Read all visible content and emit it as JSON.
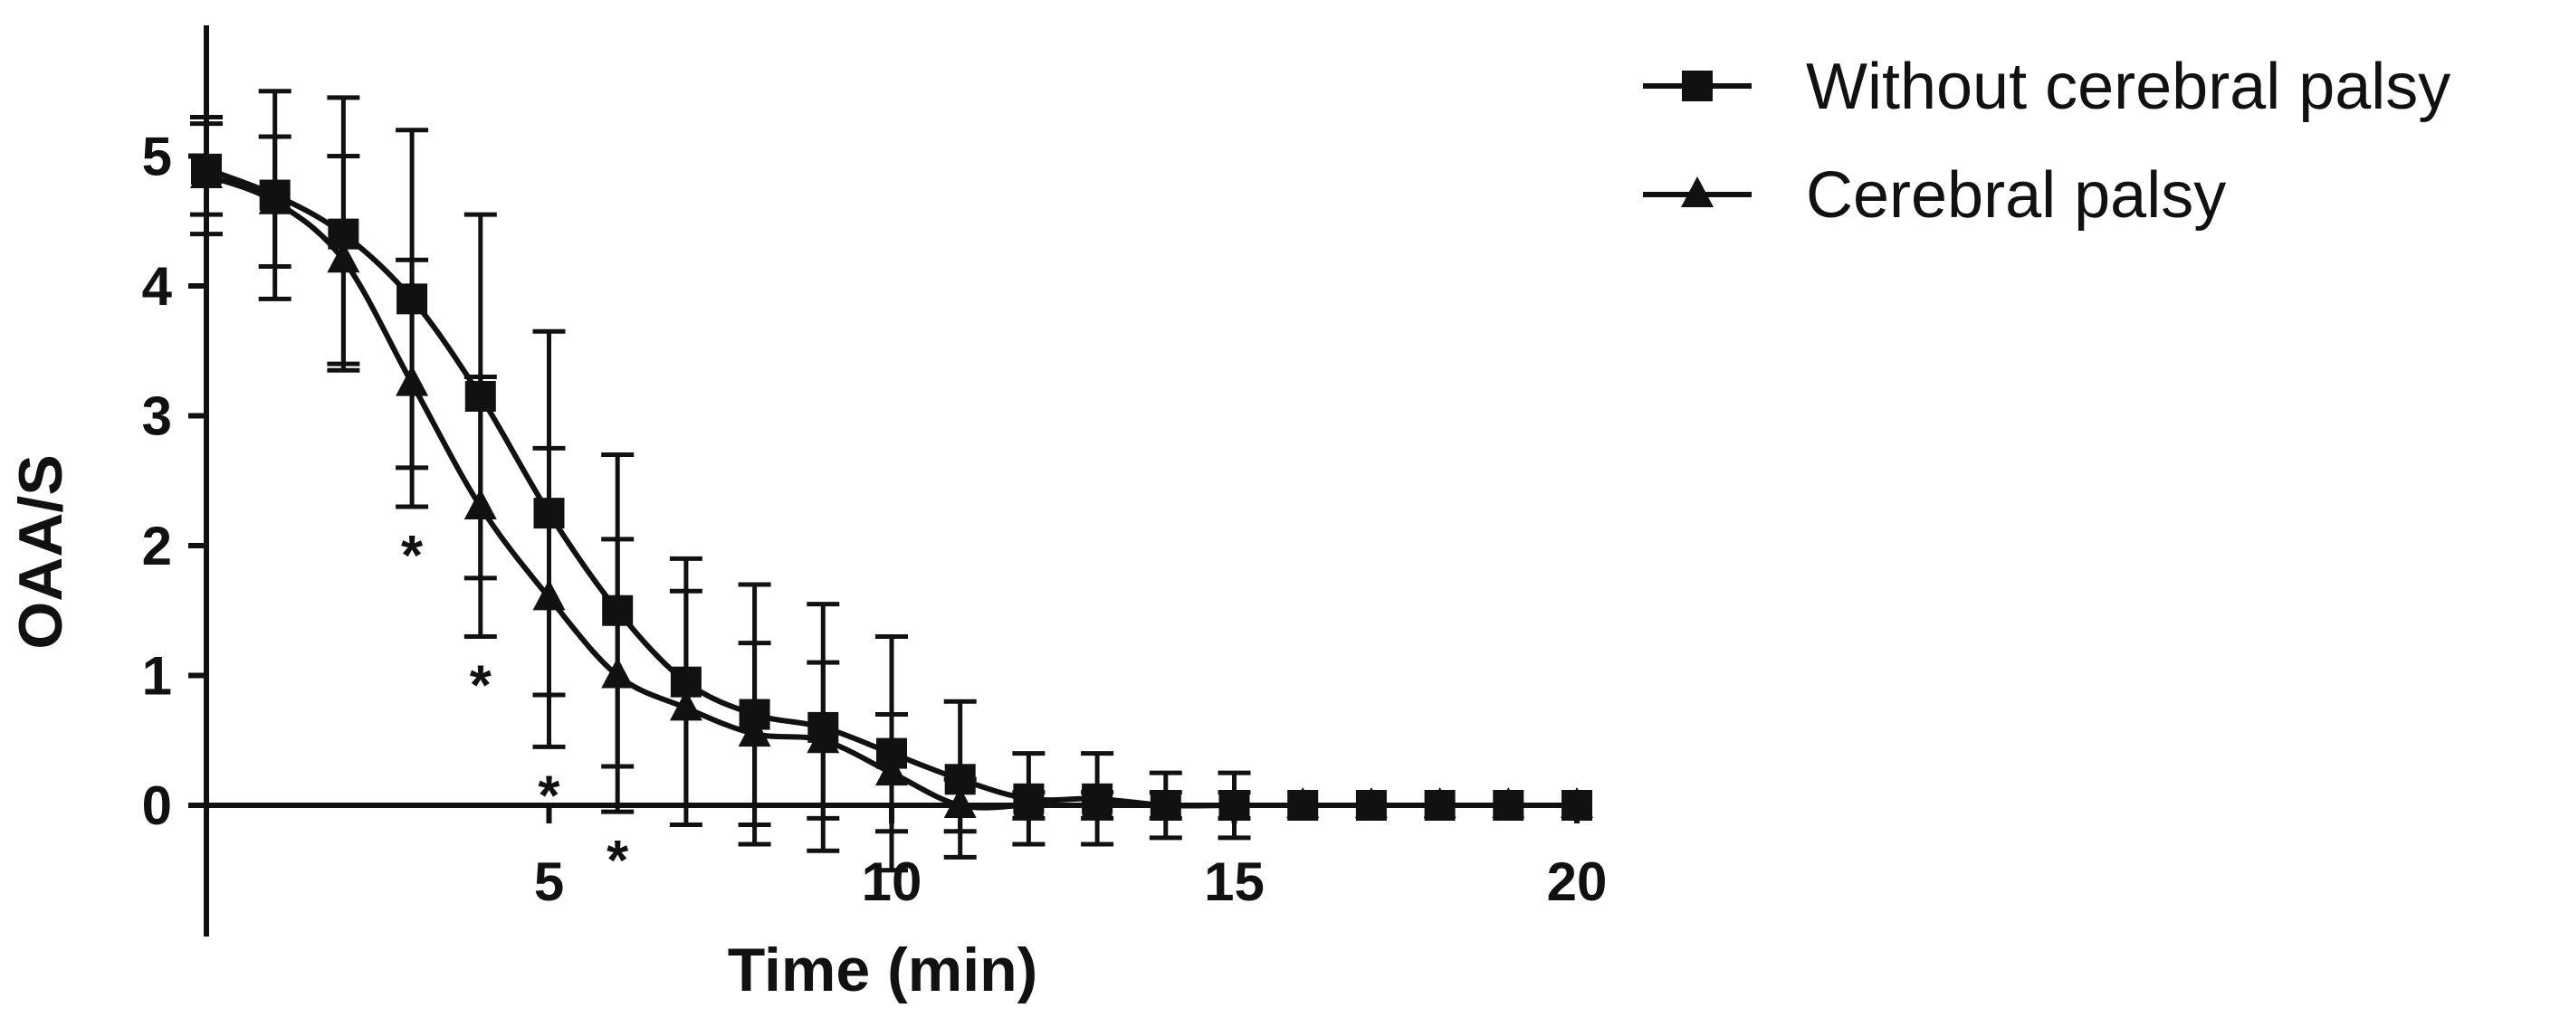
{
  "chart_data": {
    "type": "line",
    "title": "",
    "xlabel": "Time (min)",
    "ylabel": "OAA/S",
    "xlim": [
      0,
      20
    ],
    "ylim": [
      -1,
      6
    ],
    "x_ticks": [
      5,
      10,
      15,
      20
    ],
    "y_ticks": [
      0,
      1,
      2,
      3,
      4,
      5
    ],
    "legend_position": "top-right",
    "error_bars": "upper only",
    "series": [
      {
        "name": "Without cerebral palsy",
        "marker": "square",
        "x": [
          0,
          1,
          2,
          3,
          4,
          5,
          6,
          7,
          8,
          9,
          10,
          11,
          12,
          13,
          14,
          15,
          16,
          17,
          18,
          19,
          20
        ],
        "values": [
          4.9,
          4.7,
          4.4,
          3.9,
          3.15,
          2.25,
          1.5,
          0.95,
          0.7,
          0.6,
          0.4,
          0.2,
          0.05,
          0.05,
          0.0,
          0.0,
          0.0,
          0.0,
          0.0,
          0.0,
          0.0
        ],
        "error": [
          0.35,
          0.8,
          1.05,
          1.3,
          1.4,
          1.4,
          1.2,
          0.95,
          1.0,
          0.95,
          0.9,
          0.6,
          0.35,
          0.35,
          0.25,
          0.25,
          0,
          0,
          0,
          0,
          0
        ]
      },
      {
        "name": "Cerebral palsy",
        "marker": "triangle",
        "x": [
          0,
          1,
          2,
          3,
          4,
          5,
          6,
          7,
          8,
          9,
          10,
          11,
          12,
          13,
          14,
          15,
          16,
          17,
          18,
          19,
          20
        ],
        "values": [
          4.85,
          4.65,
          4.2,
          3.25,
          2.3,
          1.6,
          1.0,
          0.75,
          0.55,
          0.5,
          0.25,
          0.0,
          0.0,
          0.0,
          0.0,
          0.0,
          0.0,
          0.0,
          0.0,
          0.0,
          0.0
        ],
        "error": [
          0.45,
          0.5,
          0.8,
          0.95,
          1.0,
          1.15,
          1.05,
          0.9,
          0.7,
          0.6,
          0.45,
          0.2,
          0.1,
          0.1,
          0.1,
          0.1,
          0,
          0,
          0,
          0,
          0
        ]
      }
    ],
    "annotations": [
      {
        "text": "*",
        "x": 3
      },
      {
        "text": "*",
        "x": 4
      },
      {
        "text": "*",
        "x": 5
      },
      {
        "text": "*",
        "x": 6
      }
    ]
  }
}
